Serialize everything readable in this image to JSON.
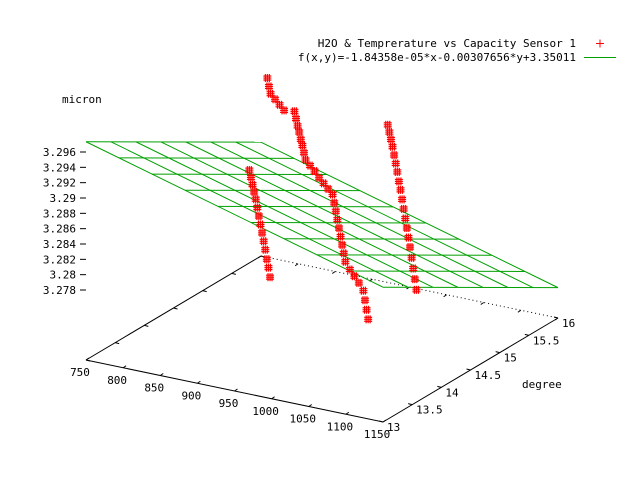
{
  "chart_data": {
    "type": "scatter",
    "title": "",
    "legend": {
      "placement": "top-right",
      "entries": [
        {
          "label": "H2O & Temprerature vs Capacity Sensor 1",
          "symbol": "plus",
          "color": "#ff0000"
        },
        {
          "label": "f(x,y)=-1.84358e-05*x-0.00307656*y+3.35011",
          "symbol": "line",
          "color": "#00a000"
        }
      ]
    },
    "zlabel": "micron",
    "ylabel": "degree",
    "xlabel": "",
    "x_ticks": [
      "750",
      "800",
      "850",
      "900",
      "950",
      "1000",
      "1050",
      "1100",
      "1150"
    ],
    "y_ticks": [
      "13",
      "13.5",
      "14",
      "14.5",
      "15",
      "15.5",
      "16"
    ],
    "z_ticks": [
      "3.278",
      "3.28",
      "3.282",
      "3.284",
      "3.286",
      "3.288",
      "3.29",
      "3.292",
      "3.294",
      "3.296"
    ],
    "xlim": [
      750,
      1150
    ],
    "ylim": [
      13,
      16
    ],
    "zlim": [
      3.277,
      3.296
    ],
    "fit": {
      "a": -1.84358e-05,
      "b": -0.00307656,
      "c": 3.35011,
      "grid_x": 9,
      "grid_y": 7
    },
    "series": [
      {
        "name": "H2O & Temprerature vs Capacity Sensor 1",
        "color": "#ff0000",
        "marker": "plus",
        "points": [
          [
            790,
            15.6,
            3.2945
          ],
          [
            800,
            15.5,
            3.2942
          ],
          [
            810,
            15.4,
            3.294
          ],
          [
            820,
            15.35,
            3.2938
          ],
          [
            830,
            15.3,
            3.2936
          ],
          [
            840,
            15.25,
            3.2934
          ],
          [
            850,
            15.3,
            3.2933
          ],
          [
            860,
            15.2,
            3.2931
          ],
          [
            870,
            15.1,
            3.2929
          ],
          [
            880,
            15.0,
            3.2928
          ],
          [
            890,
            14.9,
            3.2926
          ],
          [
            900,
            14.8,
            3.2925
          ],
          [
            910,
            14.7,
            3.2923
          ],
          [
            920,
            14.6,
            3.2921
          ],
          [
            930,
            14.55,
            3.2919
          ],
          [
            940,
            14.5,
            3.2917
          ],
          [
            950,
            14.45,
            3.2914
          ],
          [
            960,
            14.4,
            3.2912
          ],
          [
            970,
            14.35,
            3.291
          ],
          [
            980,
            14.3,
            3.2908
          ],
          [
            990,
            14.2,
            3.2905
          ],
          [
            1000,
            14.1,
            3.2902
          ],
          [
            1010,
            14.0,
            3.2899
          ],
          [
            1020,
            13.9,
            3.2896
          ],
          [
            1030,
            13.8,
            3.2893
          ],
          [
            1040,
            13.7,
            3.289
          ],
          [
            1050,
            13.6,
            3.2887
          ],
          [
            1060,
            13.5,
            3.2884
          ],
          [
            1070,
            13.45,
            3.288
          ],
          [
            1080,
            13.4,
            3.2877
          ],
          [
            1090,
            13.35,
            3.2874
          ],
          [
            1100,
            13.3,
            3.287
          ],
          [
            1110,
            13.2,
            3.2866
          ],
          [
            1120,
            13.1,
            3.2862
          ],
          [
            1130,
            13.0,
            3.2858
          ],
          [
            960,
            15.5,
            3.293
          ],
          [
            970,
            15.4,
            3.2928
          ],
          [
            980,
            15.3,
            3.2926
          ],
          [
            990,
            15.2,
            3.2924
          ],
          [
            1000,
            15.1,
            3.2921
          ],
          [
            1010,
            15.0,
            3.2918
          ],
          [
            1020,
            14.9,
            3.2915
          ],
          [
            1030,
            14.8,
            3.2911
          ],
          [
            1040,
            14.7,
            3.2908
          ],
          [
            1050,
            14.6,
            3.2904
          ],
          [
            1060,
            14.5,
            3.29
          ],
          [
            1070,
            14.4,
            3.2896
          ],
          [
            1080,
            14.3,
            3.2892
          ],
          [
            1090,
            14.2,
            3.2888
          ],
          [
            1100,
            14.1,
            3.2884
          ],
          [
            1110,
            14.0,
            3.2879
          ],
          [
            1120,
            13.9,
            3.2874
          ],
          [
            1130,
            13.8,
            3.2869
          ],
          [
            1140,
            13.7,
            3.2864
          ],
          [
            860,
            14.4,
            3.291
          ],
          [
            870,
            14.3,
            3.2908
          ],
          [
            880,
            14.2,
            3.2906
          ],
          [
            890,
            14.1,
            3.2904
          ],
          [
            900,
            14.0,
            3.2902
          ],
          [
            910,
            13.9,
            3.2899
          ],
          [
            920,
            13.8,
            3.2896
          ],
          [
            930,
            13.7,
            3.2893
          ],
          [
            940,
            13.6,
            3.289
          ],
          [
            950,
            13.5,
            3.2887
          ],
          [
            960,
            13.4,
            3.2884
          ],
          [
            970,
            13.3,
            3.288
          ],
          [
            980,
            13.2,
            3.2877
          ],
          [
            990,
            13.1,
            3.2873
          ]
        ]
      }
    ]
  }
}
